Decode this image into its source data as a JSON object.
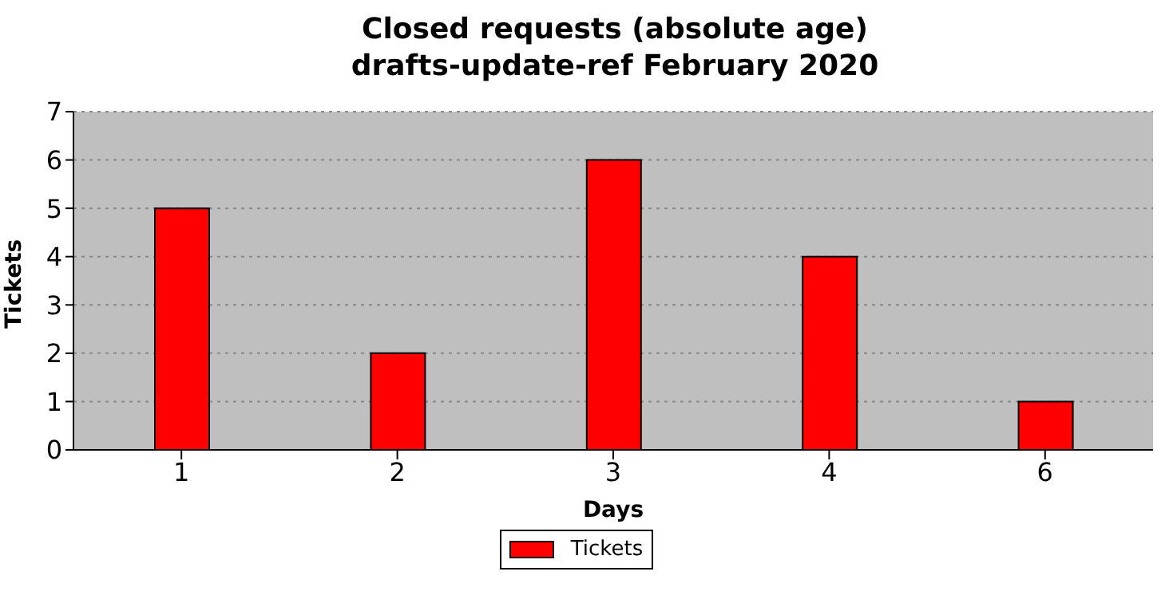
{
  "chart_data": {
    "type": "bar",
    "title": "Closed requests (absolute age)\ndrafts-update-ref February 2020",
    "xlabel": "Days",
    "ylabel": "Tickets",
    "categories": [
      "1",
      "2",
      "3",
      "4",
      "6"
    ],
    "series": [
      {
        "name": "Tickets",
        "color": "#ff0000",
        "values": [
          5,
          2,
          6,
          4,
          1
        ]
      }
    ],
    "ylim": [
      0,
      7
    ],
    "yticks": [
      0,
      1,
      2,
      3,
      4,
      5,
      6,
      7
    ],
    "grid": "y",
    "legend": "bottom"
  }
}
